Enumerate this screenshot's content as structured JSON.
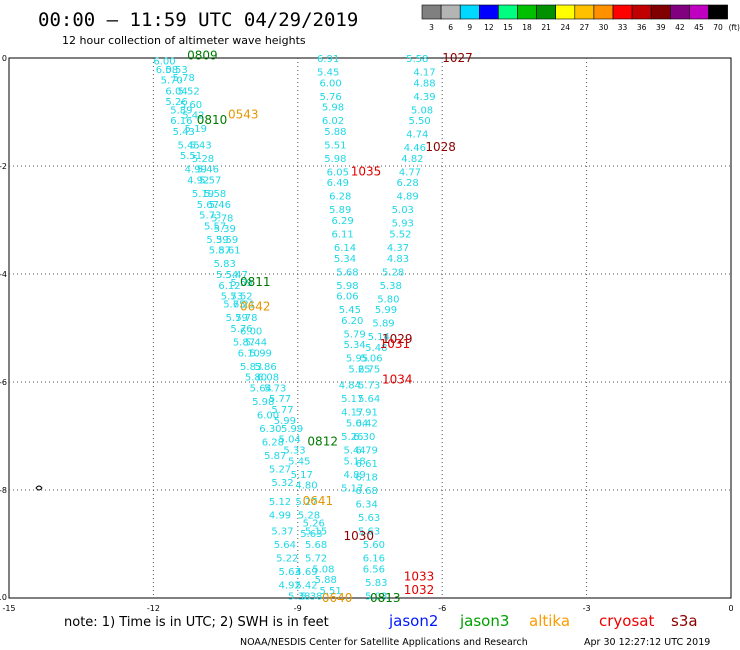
{
  "header": {
    "title": "00:00 – 11:59 UTC 04/29/2019",
    "subtitle": "12 hour collection of altimeter wave heights"
  },
  "legend": {
    "unit": "(ft)",
    "bins": [
      {
        "label": "3",
        "color": "#808080"
      },
      {
        "label": "6",
        "color": "#b4b4b4"
      },
      {
        "label": "9",
        "color": "#00d8ff"
      },
      {
        "label": "12",
        "color": "#0000ff"
      },
      {
        "label": "15",
        "color": "#00ff80"
      },
      {
        "label": "18",
        "color": "#00c000"
      },
      {
        "label": "21",
        "color": "#009000"
      },
      {
        "label": "24",
        "color": "#ffff00"
      },
      {
        "label": "27",
        "color": "#ffc000"
      },
      {
        "label": "30",
        "color": "#ff9000"
      },
      {
        "label": "33",
        "color": "#ff0000"
      },
      {
        "label": "36",
        "color": "#c00000"
      },
      {
        "label": "39",
        "color": "#800000"
      },
      {
        "label": "42",
        "color": "#800080"
      },
      {
        "label": "45",
        "color": "#c000c0"
      },
      {
        "label": "70",
        "color": "#000000"
      }
    ]
  },
  "axes": {
    "x_ticks": [
      "-15",
      "-12",
      "-9",
      "-6",
      "-3",
      "0"
    ],
    "y_ticks": [
      "0",
      "-2",
      "-4",
      "-6",
      "-8",
      "-10"
    ]
  },
  "wave_heights": [
    {
      "lon": -12.0,
      "lat": -0.05,
      "t": "6.00"
    },
    {
      "lon": -11.75,
      "lat": -0.2,
      "t": "5.53"
    },
    {
      "lon": -11.95,
      "lat": -0.2,
      "t": "6.08"
    },
    {
      "lon": -11.85,
      "lat": -0.4,
      "t": "5.70"
    },
    {
      "lon": -11.6,
      "lat": -0.35,
      "t": "5.78"
    },
    {
      "lon": -11.75,
      "lat": -0.6,
      "t": "6.04"
    },
    {
      "lon": -11.5,
      "lat": -0.6,
      "t": "5.52"
    },
    {
      "lon": -11.75,
      "lat": -0.8,
      "t": "5.26"
    },
    {
      "lon": -11.45,
      "lat": -0.85,
      "t": "5.60"
    },
    {
      "lon": -11.65,
      "lat": -0.95,
      "t": "5.89"
    },
    {
      "lon": -11.4,
      "lat": -1.05,
      "t": "5.42"
    },
    {
      "lon": -11.65,
      "lat": -1.15,
      "t": "6.16"
    },
    {
      "lon": -11.35,
      "lat": -1.3,
      "t": "5.19"
    },
    {
      "lon": -11.6,
      "lat": -1.35,
      "t": "5.43"
    },
    {
      "lon": -11.5,
      "lat": -1.6,
      "t": "5.45"
    },
    {
      "lon": -11.25,
      "lat": -1.6,
      "t": "5.43"
    },
    {
      "lon": -11.45,
      "lat": -1.8,
      "t": "5.51"
    },
    {
      "lon": -11.2,
      "lat": -1.85,
      "t": "5.28"
    },
    {
      "lon": -11.35,
      "lat": -2.05,
      "t": "4.99"
    },
    {
      "lon": -11.1,
      "lat": -2.05,
      "t": "5.46"
    },
    {
      "lon": -11.3,
      "lat": -2.25,
      "t": "4.92"
    },
    {
      "lon": -11.05,
      "lat": -2.25,
      "t": "5.57"
    },
    {
      "lon": -11.2,
      "lat": -2.5,
      "t": "5.19"
    },
    {
      "lon": -10.95,
      "lat": -2.5,
      "t": "5.58"
    },
    {
      "lon": -11.1,
      "lat": -2.7,
      "t": "5.67"
    },
    {
      "lon": -10.85,
      "lat": -2.7,
      "t": "5.46"
    },
    {
      "lon": -11.05,
      "lat": -2.9,
      "t": "5.73"
    },
    {
      "lon": -10.8,
      "lat": -2.95,
      "t": "5.78"
    },
    {
      "lon": -10.95,
      "lat": -3.1,
      "t": "5.57"
    },
    {
      "lon": -10.75,
      "lat": -3.15,
      "t": "5.39"
    },
    {
      "lon": -10.9,
      "lat": -3.35,
      "t": "5.39"
    },
    {
      "lon": -10.7,
      "lat": -3.35,
      "t": "5.59"
    },
    {
      "lon": -10.85,
      "lat": -3.55,
      "t": "5.87"
    },
    {
      "lon": -10.65,
      "lat": -3.55,
      "t": "5.61"
    },
    {
      "lon": -10.75,
      "lat": -3.8,
      "t": "5.83"
    },
    {
      "lon": -10.7,
      "lat": -4.0,
      "t": "5.54"
    },
    {
      "lon": -10.5,
      "lat": -4.0,
      "t": "5.47"
    },
    {
      "lon": -10.65,
      "lat": -4.2,
      "t": "6.12"
    },
    {
      "lon": -10.4,
      "lat": -4.15,
      "t": "5.59"
    },
    {
      "lon": -10.6,
      "lat": -4.4,
      "t": "5.73"
    },
    {
      "lon": -10.4,
      "lat": -4.4,
      "t": "5.52"
    },
    {
      "lon": -10.55,
      "lat": -4.55,
      "t": "5.75"
    },
    {
      "lon": -10.35,
      "lat": -4.55,
      "t": "6.21"
    },
    {
      "lon": -10.5,
      "lat": -4.8,
      "t": "5.79"
    },
    {
      "lon": -10.3,
      "lat": -4.8,
      "t": "5.78"
    },
    {
      "lon": -10.4,
      "lat": -5.0,
      "t": "5.76"
    },
    {
      "lon": -10.2,
      "lat": -5.05,
      "t": "6.00"
    },
    {
      "lon": -10.35,
      "lat": -5.25,
      "t": "5.87"
    },
    {
      "lon": -10.1,
      "lat": -5.25,
      "t": "5.44"
    },
    {
      "lon": -10.25,
      "lat": -5.45,
      "t": "6.10"
    },
    {
      "lon": -10.0,
      "lat": -5.45,
      "t": "5.99"
    },
    {
      "lon": -10.2,
      "lat": -5.7,
      "t": "5.83"
    },
    {
      "lon": -9.9,
      "lat": -5.7,
      "t": "5.86"
    },
    {
      "lon": -10.1,
      "lat": -5.9,
      "t": "5.80"
    },
    {
      "lon": -9.85,
      "lat": -5.9,
      "t": "6.08"
    },
    {
      "lon": -10.0,
      "lat": -6.1,
      "t": "5.64"
    },
    {
      "lon": -9.7,
      "lat": -6.1,
      "t": "5.73"
    },
    {
      "lon": -9.6,
      "lat": -6.3,
      "t": "5.77"
    },
    {
      "lon": -9.95,
      "lat": -6.35,
      "t": "5.98"
    },
    {
      "lon": -9.55,
      "lat": -6.5,
      "t": "5.77"
    },
    {
      "lon": -9.85,
      "lat": -6.6,
      "t": "6.00"
    },
    {
      "lon": -9.5,
      "lat": -6.7,
      "t": "5.99"
    },
    {
      "lon": -9.8,
      "lat": -6.85,
      "t": "6.30"
    },
    {
      "lon": -9.35,
      "lat": -6.85,
      "t": "5.99"
    },
    {
      "lon": -9.75,
      "lat": -7.1,
      "t": "6.28"
    },
    {
      "lon": -9.4,
      "lat": -7.05,
      "t": "5.04"
    },
    {
      "lon": -9.7,
      "lat": -7.35,
      "t": "5.87"
    },
    {
      "lon": -9.3,
      "lat": -7.25,
      "t": "5.33"
    },
    {
      "lon": -9.2,
      "lat": -7.45,
      "t": "5.45"
    },
    {
      "lon": -9.6,
      "lat": -7.6,
      "t": "5.27"
    },
    {
      "lon": -9.15,
      "lat": -7.7,
      "t": "5.17"
    },
    {
      "lon": -9.55,
      "lat": -7.85,
      "t": "5.32"
    },
    {
      "lon": -9.05,
      "lat": -7.9,
      "t": "4.80"
    },
    {
      "lon": -9.6,
      "lat": -8.2,
      "t": "5.12"
    },
    {
      "lon": -9.05,
      "lat": -8.2,
      "t": "5.27"
    },
    {
      "lon": -9.6,
      "lat": -8.45,
      "t": "4.99"
    },
    {
      "lon": -9.0,
      "lat": -8.45,
      "t": "5.28"
    },
    {
      "lon": -9.55,
      "lat": -8.75,
      "t": "5.37"
    },
    {
      "lon": -8.9,
      "lat": -8.6,
      "t": "5.26"
    },
    {
      "lon": -8.85,
      "lat": -8.75,
      "t": "5.15"
    },
    {
      "lon": -8.95,
      "lat": -8.8,
      "t": "5.63"
    },
    {
      "lon": -9.5,
      "lat": -9.0,
      "t": "5.64"
    },
    {
      "lon": -8.85,
      "lat": -9.0,
      "t": "5.68"
    },
    {
      "lon": -9.45,
      "lat": -9.25,
      "t": "5.22"
    },
    {
      "lon": -8.85,
      "lat": -9.25,
      "t": "5.72"
    },
    {
      "lon": -9.4,
      "lat": -9.5,
      "t": "5.63"
    },
    {
      "lon": -9.05,
      "lat": -9.5,
      "t": "4.69"
    },
    {
      "lon": -8.7,
      "lat": -9.45,
      "t": "5.08"
    },
    {
      "lon": -9.4,
      "lat": -9.75,
      "t": "4.92"
    },
    {
      "lon": -9.05,
      "lat": -9.75,
      "t": "5.42"
    },
    {
      "lon": -8.65,
      "lat": -9.65,
      "t": "5.88"
    },
    {
      "lon": -9.2,
      "lat": -9.95,
      "t": "5.38"
    },
    {
      "lon": -8.95,
      "lat": -9.95,
      "t": "5.38"
    },
    {
      "lon": -8.55,
      "lat": -9.85,
      "t": "5.51"
    },
    {
      "lon": -8.6,
      "lat": -0.0,
      "t": "6.91"
    },
    {
      "lon": -8.6,
      "lat": -0.25,
      "t": "5.45"
    },
    {
      "lon": -8.55,
      "lat": -0.45,
      "t": "6.00"
    },
    {
      "lon": -8.55,
      "lat": -0.7,
      "t": "5.76"
    },
    {
      "lon": -8.5,
      "lat": -0.9,
      "t": "5.98"
    },
    {
      "lon": -8.5,
      "lat": -1.15,
      "t": "6.02"
    },
    {
      "lon": -8.45,
      "lat": -1.35,
      "t": "5.88"
    },
    {
      "lon": -8.45,
      "lat": -1.6,
      "t": "5.51"
    },
    {
      "lon": -8.45,
      "lat": -1.85,
      "t": "5.98"
    },
    {
      "lon": -8.4,
      "lat": -2.1,
      "t": "6.05"
    },
    {
      "lon": -8.4,
      "lat": -2.3,
      "t": "6.49"
    },
    {
      "lon": -8.35,
      "lat": -2.55,
      "t": "6.28"
    },
    {
      "lon": -8.35,
      "lat": -2.8,
      "t": "5.89"
    },
    {
      "lon": -8.3,
      "lat": -3.0,
      "t": "6.29"
    },
    {
      "lon": -8.3,
      "lat": -3.25,
      "t": "6.11"
    },
    {
      "lon": -8.25,
      "lat": -3.5,
      "t": "6.14"
    },
    {
      "lon": -8.25,
      "lat": -3.7,
      "t": "5.34"
    },
    {
      "lon": -8.2,
      "lat": -3.95,
      "t": "5.68"
    },
    {
      "lon": -8.2,
      "lat": -4.2,
      "t": "5.98"
    },
    {
      "lon": -8.2,
      "lat": -4.4,
      "t": "6.06"
    },
    {
      "lon": -8.15,
      "lat": -4.65,
      "t": "5.45"
    },
    {
      "lon": -8.1,
      "lat": -4.85,
      "t": "6.20"
    },
    {
      "lon": -8.05,
      "lat": -5.1,
      "t": "5.79"
    },
    {
      "lon": -8.05,
      "lat": -5.3,
      "t": "5.34"
    },
    {
      "lon": -8.0,
      "lat": -5.55,
      "t": "5.95"
    },
    {
      "lon": -7.95,
      "lat": -5.75,
      "t": "5.25"
    },
    {
      "lon": -8.15,
      "lat": -6.05,
      "t": "4.84"
    },
    {
      "lon": -8.1,
      "lat": -6.3,
      "t": "5.17"
    },
    {
      "lon": -8.1,
      "lat": -6.55,
      "t": "4.17"
    },
    {
      "lon": -8.0,
      "lat": -6.75,
      "t": "5.04"
    },
    {
      "lon": -8.1,
      "lat": -7.0,
      "t": "5.26"
    },
    {
      "lon": -8.05,
      "lat": -7.25,
      "t": "5.44"
    },
    {
      "lon": -8.05,
      "lat": -7.45,
      "t": "5.18"
    },
    {
      "lon": -8.05,
      "lat": -7.7,
      "t": "4.89"
    },
    {
      "lon": -8.1,
      "lat": -7.95,
      "t": "5.17"
    },
    {
      "lon": -6.75,
      "lat": -0.0,
      "t": "5.58"
    },
    {
      "lon": -6.6,
      "lat": -0.25,
      "t": "4.17"
    },
    {
      "lon": -6.6,
      "lat": -0.45,
      "t": "4.88"
    },
    {
      "lon": -6.6,
      "lat": -0.7,
      "t": "4.39"
    },
    {
      "lon": -6.65,
      "lat": -0.95,
      "t": "5.08"
    },
    {
      "lon": -6.7,
      "lat": -1.15,
      "t": "5.50"
    },
    {
      "lon": -6.75,
      "lat": -1.4,
      "t": "4.74"
    },
    {
      "lon": -6.8,
      "lat": -1.65,
      "t": "4.46"
    },
    {
      "lon": -6.85,
      "lat": -1.85,
      "t": "4.82"
    },
    {
      "lon": -6.9,
      "lat": -2.1,
      "t": "4.77"
    },
    {
      "lon": -6.95,
      "lat": -2.3,
      "t": "6.28"
    },
    {
      "lon": -6.95,
      "lat": -2.55,
      "t": "4.89"
    },
    {
      "lon": -7.05,
      "lat": -2.8,
      "t": "5.03"
    },
    {
      "lon": -7.05,
      "lat": -3.05,
      "t": "5.93"
    },
    {
      "lon": -7.1,
      "lat": -3.25,
      "t": "5.52"
    },
    {
      "lon": -7.15,
      "lat": -3.5,
      "t": "4.37"
    },
    {
      "lon": -7.15,
      "lat": -3.7,
      "t": "4.83"
    },
    {
      "lon": -7.25,
      "lat": -3.95,
      "t": "5.28"
    },
    {
      "lon": -7.3,
      "lat": -4.2,
      "t": "5.38"
    },
    {
      "lon": -7.35,
      "lat": -4.45,
      "t": "5.80"
    },
    {
      "lon": -7.4,
      "lat": -4.65,
      "t": "5.99"
    },
    {
      "lon": -7.45,
      "lat": -4.9,
      "t": "5.89"
    },
    {
      "lon": -7.55,
      "lat": -5.15,
      "t": "5.14"
    },
    {
      "lon": -7.6,
      "lat": -5.35,
      "t": "5.48"
    },
    {
      "lon": -7.7,
      "lat": -5.55,
      "t": "5.06"
    },
    {
      "lon": -7.75,
      "lat": -5.75,
      "t": "6.75"
    },
    {
      "lon": -7.75,
      "lat": -6.05,
      "t": "5.73"
    },
    {
      "lon": -7.75,
      "lat": -6.3,
      "t": "5.64"
    },
    {
      "lon": -7.8,
      "lat": -6.55,
      "t": "5.91"
    },
    {
      "lon": -7.8,
      "lat": -6.75,
      "t": "6.42"
    },
    {
      "lon": -7.85,
      "lat": -7.0,
      "t": "6.30"
    },
    {
      "lon": -7.8,
      "lat": -7.25,
      "t": "6.79"
    },
    {
      "lon": -7.8,
      "lat": -7.5,
      "t": "6.61"
    },
    {
      "lon": -7.8,
      "lat": -7.75,
      "t": "6.18"
    },
    {
      "lon": -7.8,
      "lat": -8.0,
      "t": "6.68"
    },
    {
      "lon": -7.8,
      "lat": -8.25,
      "t": "6.34"
    },
    {
      "lon": -7.75,
      "lat": -8.5,
      "t": "5.63"
    },
    {
      "lon": -7.75,
      "lat": -8.75,
      "t": "5.63"
    },
    {
      "lon": -7.65,
      "lat": -9.0,
      "t": "5.60"
    },
    {
      "lon": -7.65,
      "lat": -9.25,
      "t": "6.16"
    },
    {
      "lon": -7.65,
      "lat": -9.45,
      "t": "6.56"
    },
    {
      "lon": -7.6,
      "lat": -9.7,
      "t": "5.83"
    },
    {
      "lon": -7.6,
      "lat": -9.95,
      "t": "5.03"
    }
  ],
  "passes": [
    {
      "lon": -11.3,
      "lat": 0.05,
      "t": "0809",
      "color": "#007a00"
    },
    {
      "lon": -10.45,
      "lat": -1.05,
      "t": "0543",
      "color": "#e69500"
    },
    {
      "lon": -11.1,
      "lat": -1.15,
      "t": "0810",
      "color": "#007a00"
    },
    {
      "lon": -6.0,
      "lat": -0.0,
      "t": "1027",
      "color": "#8b0000"
    },
    {
      "lon": -6.35,
      "lat": -1.65,
      "t": "1028",
      "color": "#8b0000"
    },
    {
      "lon": -7.9,
      "lat": -2.1,
      "t": "1035",
      "color": "#e00000"
    },
    {
      "lon": -10.2,
      "lat": -4.15,
      "t": "0811",
      "color": "#007a00"
    },
    {
      "lon": -10.2,
      "lat": -4.6,
      "t": "0642",
      "color": "#e69500"
    },
    {
      "lon": -7.25,
      "lat": -5.2,
      "t": "1029",
      "color": "#8b0000"
    },
    {
      "lon": -7.3,
      "lat": -5.3,
      "t": "1031",
      "color": "#e00000"
    },
    {
      "lon": -7.25,
      "lat": -5.95,
      "t": "1034",
      "color": "#e00000"
    },
    {
      "lon": -8.8,
      "lat": -7.1,
      "t": "0812",
      "color": "#007a00"
    },
    {
      "lon": -8.9,
      "lat": -8.2,
      "t": "0641",
      "color": "#e69500"
    },
    {
      "lon": -8.05,
      "lat": -8.85,
      "t": "1030",
      "color": "#8b0000"
    },
    {
      "lon": -6.8,
      "lat": -9.6,
      "t": "1033",
      "color": "#e00000"
    },
    {
      "lon": -6.8,
      "lat": -9.85,
      "t": "1032",
      "color": "#e00000"
    },
    {
      "lon": -8.5,
      "lat": -10.0,
      "t": "0640",
      "color": "#e69500"
    },
    {
      "lon": -7.5,
      "lat": -10.0,
      "t": "0813",
      "color": "#007a00"
    }
  ],
  "footer": {
    "note": "note: 1) Time is in UTC; 2) SWH is in feet",
    "satellites": [
      {
        "name": "jason2",
        "color": "#0018ff"
      },
      {
        "name": "jason3",
        "color": "#00a000"
      },
      {
        "name": "altika",
        "color": "#ff9a00"
      },
      {
        "name": "cryosat",
        "color": "#ee0000"
      },
      {
        "name": "s3a",
        "color": "#8b0000"
      }
    ],
    "credit": "NOAA/NESDIS Center for Satellite Applications and Research",
    "timestamp": "Apr 30 12:27:12 UTC 2019"
  }
}
